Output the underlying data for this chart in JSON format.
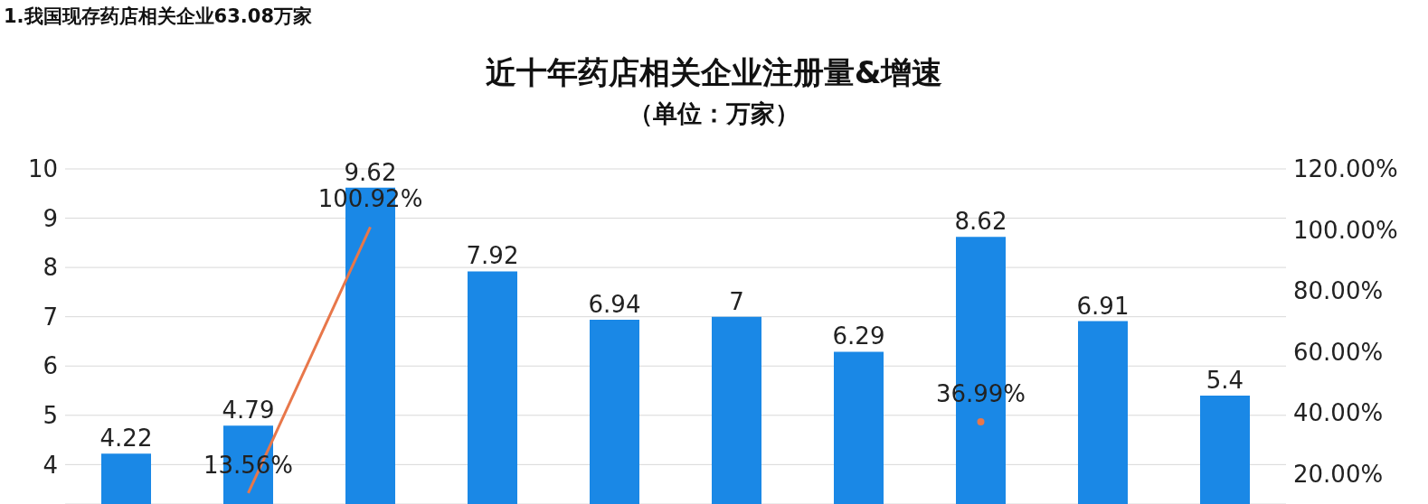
{
  "chart_data": {
    "type": "bar",
    "title": "近十年药店相关企业注册量&增速",
    "subtitle": "（单位：万家）",
    "annotations": [
      "1.我国现存药店相关企业63.08万家"
    ],
    "categories": [
      null,
      null,
      null,
      null,
      null,
      null,
      null,
      null,
      null,
      null
    ],
    "series": [
      {
        "color": "#1a88e6",
        "values": [
          4.22,
          4.79,
          9.62,
          7.92,
          6.94,
          7,
          6.29,
          8.62,
          6.91,
          5.4
        ]
      },
      {
        "type": "line",
        "axis": "y2",
        "color": "#e8774a",
        "values": [
          null,
          13.56,
          100.92,
          null,
          null,
          null,
          null,
          36.99,
          null,
          null
        ],
        "value_labels": [
          null,
          "13.56%",
          "100.92%",
          null,
          null,
          null,
          null,
          "36.99%",
          null,
          null
        ]
      }
    ],
    "data_labels": true,
    "ylim": [
      3.2,
      10
    ],
    "yticks": [
      4,
      5,
      6,
      7,
      8,
      9,
      10
    ],
    "y2lim": [
      10,
      120
    ],
    "y2ticks": [
      {
        "value": 20,
        "label": "20.00%"
      },
      {
        "value": 40,
        "label": "40.00%"
      },
      {
        "value": 60,
        "label": "60.00%"
      },
      {
        "value": 80,
        "label": "80.00%"
      },
      {
        "value": 100,
        "label": "100.00%"
      },
      {
        "value": 120,
        "label": "120.00%"
      }
    ],
    "grid": "y",
    "marker": "none",
    "line_style": "solid"
  }
}
